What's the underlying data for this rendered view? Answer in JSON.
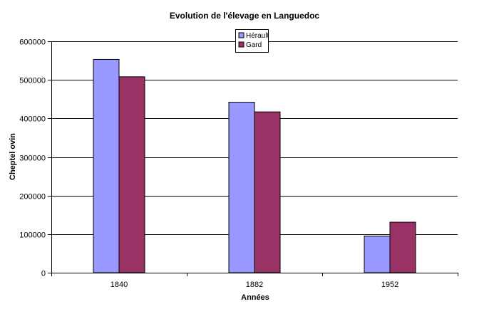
{
  "chart_data": {
    "type": "bar",
    "title": "Evolution de l'élevage en Languedoc",
    "xlabel": "Années",
    "ylabel": "Cheptel ovin",
    "categories": [
      "1840",
      "1882",
      "1952"
    ],
    "series": [
      {
        "name": "Hérault",
        "values": [
          553000,
          442000,
          95000
        ],
        "color": "#9999ff"
      },
      {
        "name": "Gard",
        "values": [
          508000,
          417000,
          131000
        ],
        "color": "#993366"
      }
    ],
    "ylim": [
      0,
      600000
    ],
    "yticks": [
      "0",
      "100000",
      "200000",
      "300000",
      "400000",
      "500000",
      "600000"
    ],
    "grid": true,
    "legend_position": "top-right"
  }
}
